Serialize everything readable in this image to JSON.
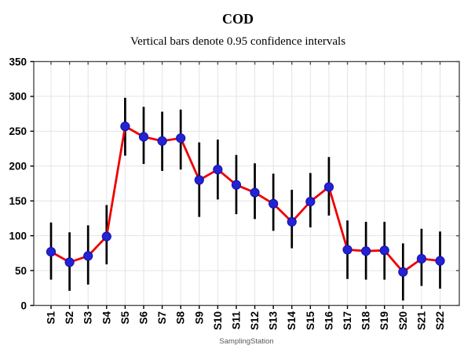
{
  "chart_data": {
    "type": "line",
    "title": "COD",
    "subtitle": "Vertical bars denote 0.95 confidence intervals",
    "xlabel": "SamplingStation",
    "ylabel": "",
    "ylim": [
      0,
      350
    ],
    "ytick_step": 50,
    "yticks": [
      0,
      50,
      100,
      150,
      200,
      250,
      300,
      350
    ],
    "grid": "on",
    "legend_position": "none",
    "error_bars": "0.95 confidence intervals",
    "categories": [
      "S1",
      "S2",
      "S3",
      "S4",
      "S5",
      "S6",
      "S7",
      "S8",
      "S9",
      "S10",
      "S11",
      "S12",
      "S13",
      "S14",
      "S15",
      "S16",
      "S17",
      "S18",
      "S19",
      "S20",
      "S21",
      "S22"
    ],
    "series": [
      {
        "name": "COD mean",
        "values": [
          77,
          62,
          71,
          99,
          257,
          242,
          236,
          240,
          180,
          195,
          173,
          162,
          146,
          120,
          149,
          170,
          80,
          78,
          79,
          48,
          67,
          64
        ],
        "ci_low": [
          37,
          21,
          30,
          59,
          215,
          203,
          193,
          195,
          127,
          152,
          131,
          124,
          107,
          82,
          112,
          129,
          38,
          37,
          37,
          7,
          28,
          24
        ],
        "ci_high": [
          119,
          105,
          115,
          144,
          298,
          285,
          278,
          281,
          234,
          238,
          216,
          204,
          189,
          166,
          190,
          213,
          122,
          120,
          120,
          89,
          110,
          106
        ]
      }
    ],
    "colors": {
      "line": "#ee0000",
      "marker_fill": "#2323d3",
      "marker_edge": "#1111aa",
      "error_bar": "#000000",
      "grid": "#e4e4e4",
      "frame": "#4d4d4d",
      "tick": "#000000",
      "text": "#000000",
      "xlabel_text": "#595959",
      "background": "#ffffff"
    }
  }
}
